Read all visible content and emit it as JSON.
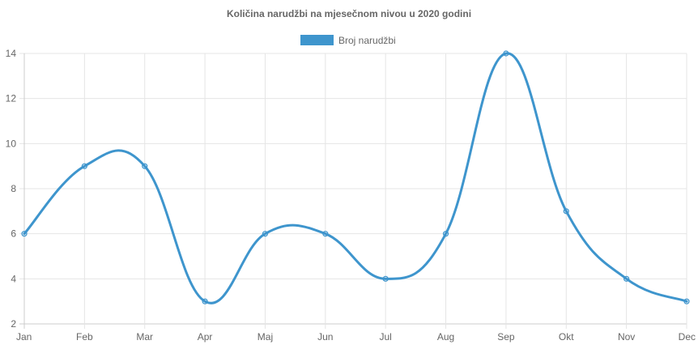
{
  "chart_data": {
    "type": "line",
    "title": "Količina narudžbi na mjesečnom nivou u 2020 godini",
    "categories": [
      "Jan",
      "Feb",
      "Mar",
      "Apr",
      "Maj",
      "Jun",
      "Jul",
      "Aug",
      "Sep",
      "Okt",
      "Nov",
      "Dec"
    ],
    "series": [
      {
        "name": "Broj narudžbi",
        "values": [
          6,
          9,
          9,
          3,
          6,
          6,
          4,
          6,
          14,
          7,
          4,
          3
        ],
        "color": "#3e95cd"
      }
    ],
    "ylim": [
      2,
      14
    ],
    "yticks": [
      2,
      4,
      6,
      8,
      10,
      12,
      14
    ],
    "grid": true,
    "legend_position": "top",
    "xlabel": "",
    "ylabel": ""
  }
}
